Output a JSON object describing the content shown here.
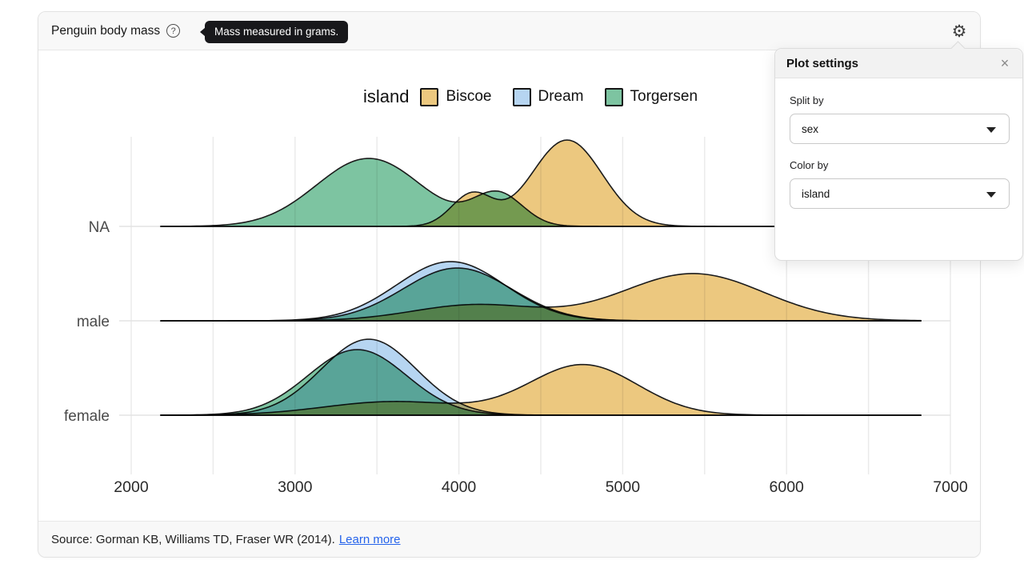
{
  "header": {
    "title": "Penguin body mass",
    "help_icon_glyph": "?",
    "help_tooltip": "Mass measured in grams.",
    "gear_glyph": "⚙"
  },
  "settings_panel": {
    "title": "Plot settings",
    "close_glyph": "×",
    "fields": [
      {
        "label": "Split by",
        "value": "sex"
      },
      {
        "label": "Color by",
        "value": "island"
      }
    ]
  },
  "footer": {
    "source_text": "Source: Gorman KB, Williams TD, Fraser WR (2014).",
    "link_text": "Learn more",
    "link_color": "#2563eb"
  },
  "chart_data": {
    "type": "area",
    "variant": "density-ridgeline",
    "title": "Penguin body mass",
    "x_unit": "grams",
    "x_range": [
      2000,
      7000
    ],
    "x_ticks": [
      2000,
      3000,
      4000,
      5000,
      6000,
      7000
    ],
    "x_gridline_step": 500,
    "rows": [
      "NA",
      "male",
      "female"
    ],
    "curve_span_grams": [
      2180,
      6820
    ],
    "stroke_color": "#1b1b1b",
    "gridline_color": "#eaeaea",
    "row_line_color": "#e3e3e3",
    "tick_label_color": "#2a2a2a",
    "row_label_color": "#4a4a4a",
    "legend": {
      "title": "island",
      "entries": [
        {
          "label": "Biscoe",
          "color": "#ecc87f"
        },
        {
          "label": "Dream",
          "color": "#b6d5f1"
        },
        {
          "label": "Torgersen",
          "color": "#7dc4a1"
        }
      ]
    },
    "densities": [
      {
        "row": "NA",
        "island": "Torgersen",
        "components": [
          {
            "mean": 3450,
            "sd": 320,
            "peak": 85
          },
          {
            "mean": 4240,
            "sd": 150,
            "peak": 40
          }
        ]
      },
      {
        "row": "NA",
        "island": "Biscoe",
        "components": [
          {
            "mean": 4080,
            "sd": 125,
            "peak": 40
          },
          {
            "mean": 4660,
            "sd": 215,
            "peak": 108
          }
        ]
      },
      {
        "row": "male",
        "island": "Biscoe",
        "components": [
          {
            "mean": 4100,
            "sd": 380,
            "peak": 20
          },
          {
            "mean": 5430,
            "sd": 430,
            "peak": 59
          }
        ]
      },
      {
        "row": "male",
        "island": "Dream",
        "components": [
          {
            "mean": 3950,
            "sd": 330,
            "peak": 74
          }
        ]
      },
      {
        "row": "male",
        "island": "Torgersen",
        "components": [
          {
            "mean": 3990,
            "sd": 330,
            "peak": 66
          }
        ]
      },
      {
        "row": "female",
        "island": "Biscoe",
        "components": [
          {
            "mean": 3600,
            "sd": 420,
            "peak": 17
          },
          {
            "mean": 4760,
            "sd": 330,
            "peak": 63
          }
        ]
      },
      {
        "row": "female",
        "island": "Dream",
        "components": [
          {
            "mean": 3450,
            "sd": 290,
            "peak": 95
          }
        ]
      },
      {
        "row": "female",
        "island": "Torgersen",
        "components": [
          {
            "mean": 3380,
            "sd": 300,
            "peak": 82
          }
        ]
      }
    ]
  }
}
